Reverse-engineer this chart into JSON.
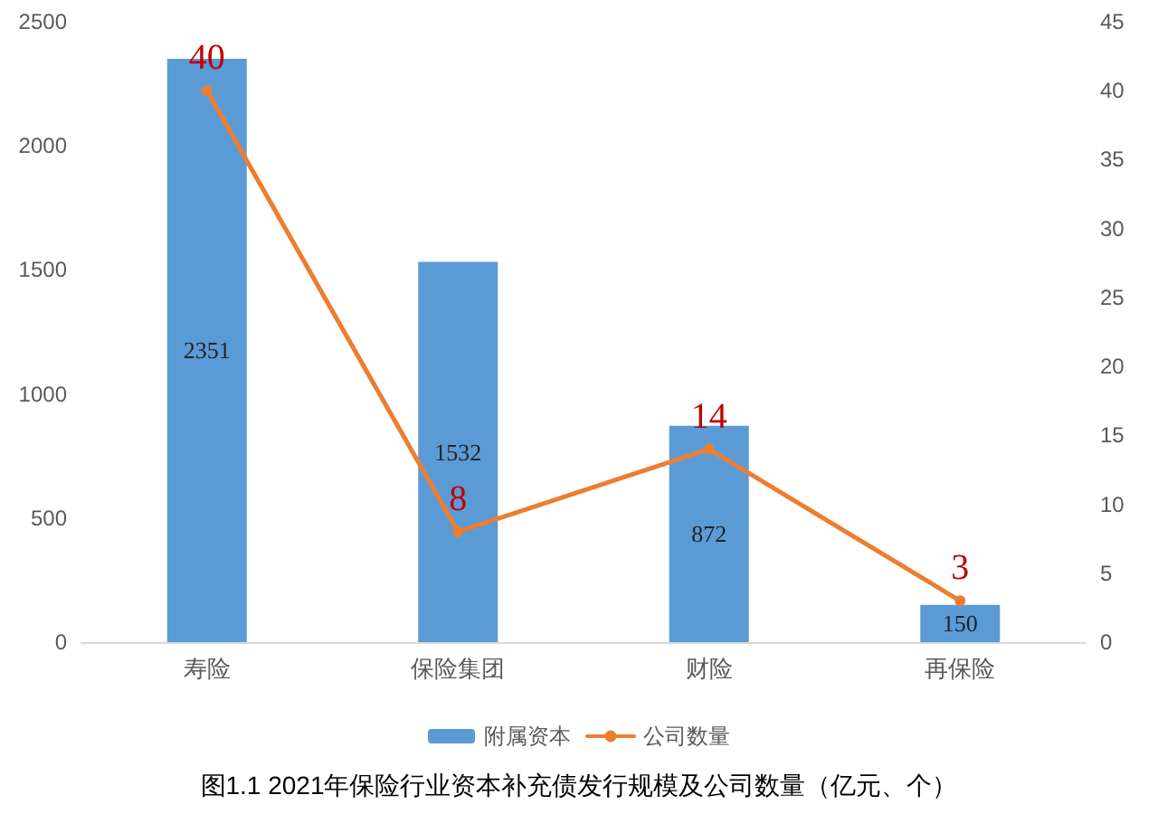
{
  "chart_data": {
    "type": "bar",
    "title": "图1.1 2021年保险行业资本补充债发行规模及公司数量（亿元、个）",
    "categories": [
      "寿险",
      "保险集团",
      "财险",
      "再保险"
    ],
    "series": [
      {
        "name": "附属资本",
        "color": "#5b9bd5",
        "values": [
          2351,
          1532,
          872,
          150
        ]
      },
      {
        "name": "公司数量",
        "type": "line",
        "axis": "y2",
        "color": "#ed7d31",
        "values": [
          40,
          8,
          14,
          3
        ]
      }
    ],
    "ylim": [
      0,
      2500
    ],
    "yticks": [
      0,
      500,
      1000,
      1500,
      2000,
      2500
    ],
    "y2lim": [
      0,
      45
    ],
    "y2ticks": [
      0,
      5,
      10,
      15,
      20,
      25,
      30,
      35,
      40,
      45
    ],
    "data_labels": true,
    "grid": false,
    "legend": "bottom",
    "marker": "circle",
    "line_style": "solid"
  }
}
